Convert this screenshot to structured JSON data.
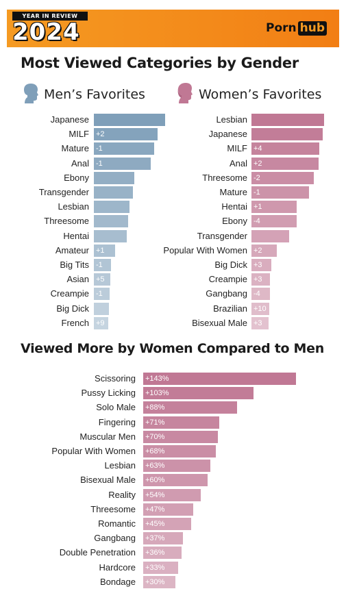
{
  "banner": {
    "year_in_review": "YEAR IN REVIEW",
    "year": "2024",
    "logo_left": "Porn",
    "logo_right": "hub",
    "colors": {
      "orange": "#f59a22",
      "black": "#111111"
    }
  },
  "sections": {
    "gender_title": "Most Viewed Categories by Gender",
    "men_title": "Men’s Favorites",
    "women_title": "Women’s Favorites",
    "compare_title": "Viewed More by Women Compared to Men"
  },
  "chart_data": [
    {
      "type": "bar",
      "orientation": "horizontal",
      "title": "Men’s Favorites",
      "color": "#7f9fb9",
      "categories": [
        "Japanese",
        "MILF",
        "Mature",
        "Anal",
        "Ebony",
        "Transgender",
        "Lesbian",
        "Threesome",
        "Hentai",
        "Amateur",
        "Big Tits",
        "Asian",
        "Creampie",
        "Big Dick",
        "French"
      ],
      "values": [
        104,
        93,
        88,
        83,
        59,
        57,
        52,
        50,
        48,
        31,
        25,
        24,
        23,
        22,
        21
      ],
      "annotations": [
        "",
        "+2",
        "-1",
        "-1",
        "",
        "",
        "",
        "",
        "",
        "+1",
        "-1",
        "+5",
        "-1",
        "",
        "+9"
      ]
    },
    {
      "type": "bar",
      "orientation": "horizontal",
      "title": "Women’s Favorites",
      "color": "#c07894",
      "categories": [
        "Lesbian",
        "Japanese",
        "MILF",
        "Anal",
        "Threesome",
        "Mature",
        "Hentai",
        "Ebony",
        "Transgender",
        "Popular With Women",
        "Big Dick",
        "Creampie",
        "Gangbang",
        "Brazilian",
        "Bisexual Male"
      ],
      "values": [
        106,
        104,
        99,
        98,
        91,
        84,
        66,
        66,
        55,
        37,
        29,
        27,
        27,
        26,
        25
      ],
      "annotations": [
        "",
        "",
        "+4",
        "+2",
        "-2",
        "-1",
        "+1",
        "-4",
        "",
        "+2",
        "+3",
        "+3",
        "-4",
        "+10",
        "+3"
      ]
    },
    {
      "type": "bar",
      "orientation": "horizontal",
      "title": "Viewed More by Women Compared to Men",
      "color": "#c07894",
      "categories": [
        "Scissoring",
        "Pussy Licking",
        "Solo Male",
        "Fingering",
        "Muscular Men",
        "Popular With Women",
        "Lesbian",
        "Bisexual Male",
        "Reality",
        "Threesome",
        "Romantic",
        "Gangbang",
        "Double Penetration",
        "Hardcore",
        "Bondage"
      ],
      "values": [
        143,
        103,
        88,
        71,
        70,
        68,
        63,
        60,
        54,
        47,
        45,
        37,
        36,
        33,
        30
      ],
      "value_labels": [
        "+143%",
        "+103%",
        "+88%",
        "+71%",
        "+70%",
        "+68%",
        "+63%",
        "+60%",
        "+54%",
        "+47%",
        "+45%",
        "+37%",
        "+36%",
        "+33%",
        "+30%"
      ],
      "xlim": [
        0,
        143
      ]
    }
  ]
}
